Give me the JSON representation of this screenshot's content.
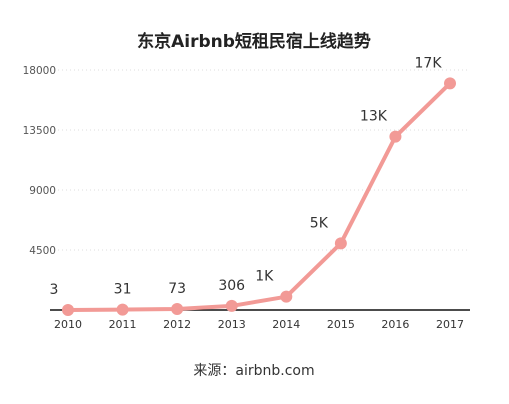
{
  "colors": {
    "line": "#f29a96",
    "axis": "#111111"
  },
  "source_text": "来源：airbnb.com",
  "chart_data": {
    "type": "line",
    "title": "东京Airbnb短租民宿上线趋势",
    "categories": [
      "2010",
      "2011",
      "2012",
      "2013",
      "2014",
      "2015",
      "2016",
      "2017"
    ],
    "values": [
      3,
      31,
      73,
      306,
      1000,
      5000,
      13000,
      17000
    ],
    "data_labels": [
      "3",
      "31",
      "73",
      "306",
      "1K",
      "5K",
      "13K",
      "17K"
    ],
    "y_ticks": [
      "4500",
      "9000",
      "13500",
      "18000"
    ],
    "ylim": [
      0,
      18000
    ],
    "grid": true
  }
}
